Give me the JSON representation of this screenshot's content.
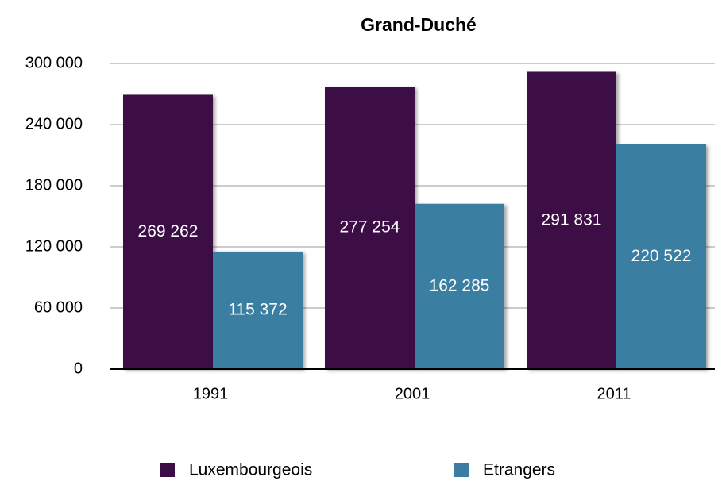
{
  "chart_data": {
    "type": "bar",
    "title": "Grand-Duché",
    "categories": [
      "1991",
      "2001",
      "2011"
    ],
    "series": [
      {
        "name": "Luxembourgeois",
        "color": "#3d0e46",
        "values": [
          269262,
          277254,
          291831
        ],
        "value_labels": [
          "269 262",
          "277 254",
          "291 831"
        ]
      },
      {
        "name": "Etrangers",
        "color": "#3a7fa1",
        "values": [
          115372,
          162285,
          220522
        ],
        "value_labels": [
          "115 372",
          "162 285",
          "220 522"
        ]
      }
    ],
    "ylim": [
      0,
      300000
    ],
    "yticks": [
      0,
      {
        "value": 60000,
        "label": "60 000"
      },
      {
        "value": 120000,
        "label": "120 000"
      },
      {
        "value": 180000,
        "label": "180 000"
      },
      {
        "value": 240000,
        "label": "240 000"
      },
      {
        "value": 300000,
        "label": "300 000"
      }
    ],
    "grid": true
  }
}
